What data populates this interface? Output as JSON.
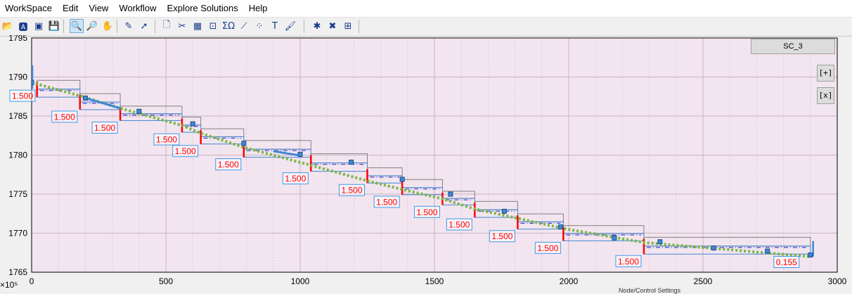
{
  "menu": {
    "items": [
      "WorkSpace",
      "Edit",
      "View",
      "Workflow",
      "Explore Solutions",
      "Help"
    ]
  },
  "toolbar": {
    "icons": [
      {
        "name": "open-folder-icon",
        "glyph": "📂"
      },
      {
        "name": "text-image-icon",
        "glyph": "🅰"
      },
      {
        "name": "image-icon",
        "glyph": "▣"
      },
      {
        "name": "save-icon",
        "glyph": "💾"
      },
      {
        "name": "zoom-icon",
        "glyph": "🔍",
        "active": true
      },
      {
        "name": "magnifier-icon",
        "glyph": "🔎"
      },
      {
        "name": "pan-hand-icon",
        "glyph": "✋"
      },
      {
        "name": "edit-down-icon",
        "glyph": "✎"
      },
      {
        "name": "pointer-add-icon",
        "glyph": "➚"
      },
      {
        "name": "new-page-icon",
        "glyph": "🗋"
      },
      {
        "name": "cut-line-icon",
        "glyph": "✂"
      },
      {
        "name": "grid-tool-icon",
        "glyph": "▦"
      },
      {
        "name": "frame-tool-icon",
        "glyph": "⊡"
      },
      {
        "name": "sum-icon",
        "glyph": "ΣΩ"
      },
      {
        "name": "line-graph-icon",
        "glyph": "⟋"
      },
      {
        "name": "scatter-icon",
        "glyph": "⁘"
      },
      {
        "name": "text-tool-icon",
        "glyph": "T"
      },
      {
        "name": "brush-icon",
        "glyph": "🖌"
      },
      {
        "name": "node-add-icon",
        "glyph": "✱"
      },
      {
        "name": "node-delete-icon",
        "glyph": "✖"
      },
      {
        "name": "node-settings-icon",
        "glyph": "⊞"
      }
    ]
  },
  "scenario_label": "SC_3",
  "side_buttons": {
    "expand": "[+]",
    "close": "[x]"
  },
  "x_exponent": "×10⁵",
  "status_fragment": "Node/Control Settings",
  "colors": {
    "plot_bg": "#f3e5ef",
    "grid": "#c8b4c2",
    "profile": "#7ab648",
    "step_red": "#ff0000",
    "label_border": "#3f9ae8",
    "label_text": "#ff0000",
    "dashdot": "#2323c8",
    "node": "#3f88d6",
    "box_border": "#808080"
  },
  "chart_data": {
    "type": "line",
    "title": "",
    "xlabel": "",
    "ylabel": "",
    "xlim": [
      0,
      3000
    ],
    "ylim": [
      1765,
      1795
    ],
    "x_ticks": [
      0,
      500,
      1000,
      1500,
      2000,
      2500,
      3000
    ],
    "y_ticks": [
      1765,
      1770,
      1775,
      1780,
      1785,
      1790,
      1795
    ],
    "grid": true,
    "series": [
      {
        "role": "profile-dotted",
        "points": [
          [
            0,
            1789.3
          ],
          [
            180,
            1787.6
          ],
          [
            330,
            1786.0
          ],
          [
            560,
            1783.8
          ],
          [
            630,
            1782.8
          ],
          [
            790,
            1781.0
          ],
          [
            1040,
            1778.7
          ],
          [
            1250,
            1776.7
          ],
          [
            1380,
            1775.6
          ],
          [
            1530,
            1774.4
          ],
          [
            1650,
            1773.1
          ],
          [
            1810,
            1771.9
          ],
          [
            1980,
            1770.6
          ],
          [
            2280,
            1768.8
          ],
          [
            2900,
            1767.0
          ]
        ]
      }
    ],
    "steps": [
      {
        "x0": 20,
        "x1": 180,
        "y_top": 1789.3,
        "y_bottom": 1787.6,
        "drop": "1.500"
      },
      {
        "x0": 180,
        "x1": 330,
        "y_top": 1787.6,
        "y_bottom": 1786.0,
        "drop": "1.500"
      },
      {
        "x0": 330,
        "x1": 560,
        "y_top": 1786.0,
        "y_bottom": 1784.6,
        "drop": "1.500"
      },
      {
        "x0": 560,
        "x1": 630,
        "y_top": 1784.6,
        "y_bottom": 1783.1,
        "drop": "1.500"
      },
      {
        "x0": 630,
        "x1": 790,
        "y_top": 1783.1,
        "y_bottom": 1781.6,
        "drop": "1.500"
      },
      {
        "x0": 790,
        "x1": 1040,
        "y_top": 1781.6,
        "y_bottom": 1779.9,
        "drop": "1.500"
      },
      {
        "x0": 1040,
        "x1": 1250,
        "y_top": 1779.9,
        "y_bottom": 1778.1,
        "drop": "1.500"
      },
      {
        "x0": 1250,
        "x1": 1380,
        "y_top": 1778.1,
        "y_bottom": 1776.6,
        "drop": "1.500"
      },
      {
        "x0": 1380,
        "x1": 1530,
        "y_top": 1776.6,
        "y_bottom": 1775.1,
        "drop": "1.500"
      },
      {
        "x0": 1530,
        "x1": 1650,
        "y_top": 1775.1,
        "y_bottom": 1773.8,
        "drop": "1.500"
      },
      {
        "x0": 1650,
        "x1": 1810,
        "y_top": 1773.8,
        "y_bottom": 1772.2,
        "drop": "1.500"
      },
      {
        "x0": 1810,
        "x1": 1980,
        "y_top": 1772.2,
        "y_bottom": 1770.7,
        "drop": "1.500"
      },
      {
        "x0": 1980,
        "x1": 2280,
        "y_top": 1770.7,
        "y_bottom": 1769.2,
        "drop": "1.500"
      },
      {
        "x0": 2280,
        "x1": 2900,
        "y_top": 1769.2,
        "y_bottom": 1767.5,
        "drop": "1.500"
      },
      {
        "x0": 2900,
        "x1": 2910,
        "y_top": 1767.5,
        "y_bottom": 1767.3,
        "drop": "0.155"
      }
    ],
    "nodes": [
      [
        0,
        1789.3
      ],
      [
        200,
        1787.3
      ],
      [
        400,
        1785.6
      ],
      [
        600,
        1784.0
      ],
      [
        790,
        1781.5
      ],
      [
        1000,
        1780.1
      ],
      [
        1190,
        1779.1
      ],
      [
        1380,
        1776.9
      ],
      [
        1560,
        1775.0
      ],
      [
        1760,
        1772.8
      ],
      [
        1970,
        1770.8
      ],
      [
        2170,
        1769.4
      ],
      [
        2340,
        1768.9
      ],
      [
        2540,
        1768.1
      ],
      [
        2740,
        1767.7
      ],
      [
        2900,
        1767.2
      ]
    ]
  }
}
